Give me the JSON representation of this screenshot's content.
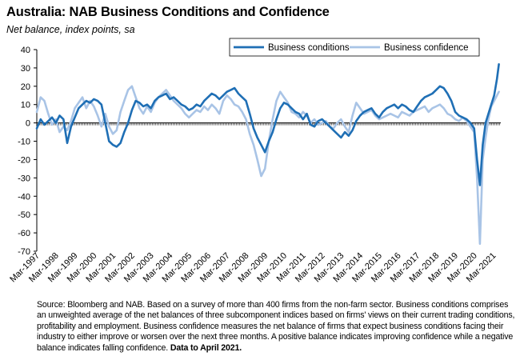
{
  "title": "Australia: NAB Business Conditions and Confidence",
  "subtitle": "Net balance, index points, sa",
  "footnote": {
    "text": "Source: Bloomberg and NAB. Based on a survey of more than 400 firms from the non-farm sector.  Business conditions comprises an unweighted average of the net balances of three subcomponent indices based on firms' views on their current trading conditions, profitability and employment.  Business confidence measures the net balance of firms that expect business conditions facing their industry to either improve or worsen over the next three months.  A positive balance indicates improving confidence while a negative balance indicates falling confidence.",
    "bold": "Data to April 2021."
  },
  "chart_data": {
    "type": "line",
    "xlabel": "",
    "ylabel": "",
    "ylim": [
      -70,
      40
    ],
    "yticks": [
      -70,
      -60,
      -50,
      -40,
      -30,
      -20,
      -10,
      0,
      10,
      20,
      30,
      40
    ],
    "x_tick_labels": [
      "Mar-1997",
      "Mar-1998",
      "Mar-1999",
      "Mar-2000",
      "Mar-2001",
      "Mar-2002",
      "Mar-2003",
      "Mar-2004",
      "Mar-2005",
      "Mar-2006",
      "Mar-2007",
      "Mar-2008",
      "Mar-2009",
      "Mar-2010",
      "Mar-2011",
      "Mar-2012",
      "Mar-2013",
      "Mar-2014",
      "Mar-2015",
      "Mar-2016",
      "Mar-2017",
      "Mar-2018",
      "Mar-2019",
      "Mar-2020",
      "Mar-2021"
    ],
    "x_range": [
      1997.0,
      2021.4
    ],
    "grid": false,
    "legend": "top-right",
    "series": [
      {
        "name": "Business conditions",
        "color": "#1f6fb5",
        "points": [
          [
            1997.0,
            -3
          ],
          [
            1997.2,
            2
          ],
          [
            1997.4,
            -1
          ],
          [
            1997.6,
            1
          ],
          [
            1997.8,
            3
          ],
          [
            1998.0,
            0
          ],
          [
            1998.2,
            4
          ],
          [
            1998.4,
            2
          ],
          [
            1998.6,
            -11
          ],
          [
            1998.8,
            -2
          ],
          [
            1999.0,
            3
          ],
          [
            1999.2,
            8
          ],
          [
            1999.4,
            10
          ],
          [
            1999.6,
            12
          ],
          [
            1999.8,
            11
          ],
          [
            2000.0,
            13
          ],
          [
            2000.2,
            12
          ],
          [
            2000.4,
            10
          ],
          [
            2000.6,
            0
          ],
          [
            2000.8,
            -10
          ],
          [
            2001.0,
            -12
          ],
          [
            2001.2,
            -13
          ],
          [
            2001.4,
            -11
          ],
          [
            2001.6,
            -5
          ],
          [
            2001.8,
            0
          ],
          [
            2002.0,
            7
          ],
          [
            2002.2,
            12
          ],
          [
            2002.4,
            11
          ],
          [
            2002.6,
            9
          ],
          [
            2002.8,
            10
          ],
          [
            2003.0,
            8
          ],
          [
            2003.2,
            12
          ],
          [
            2003.4,
            14
          ],
          [
            2003.6,
            15
          ],
          [
            2003.8,
            16
          ],
          [
            2004.0,
            13
          ],
          [
            2004.2,
            14
          ],
          [
            2004.4,
            12
          ],
          [
            2004.6,
            10
          ],
          [
            2004.8,
            9
          ],
          [
            2005.0,
            7
          ],
          [
            2005.2,
            8
          ],
          [
            2005.4,
            10
          ],
          [
            2005.6,
            9
          ],
          [
            2005.8,
            12
          ],
          [
            2006.0,
            14
          ],
          [
            2006.2,
            16
          ],
          [
            2006.4,
            15
          ],
          [
            2006.6,
            13
          ],
          [
            2006.8,
            15
          ],
          [
            2007.0,
            17
          ],
          [
            2007.2,
            18
          ],
          [
            2007.4,
            19
          ],
          [
            2007.6,
            16
          ],
          [
            2007.8,
            14
          ],
          [
            2008.0,
            12
          ],
          [
            2008.2,
            5
          ],
          [
            2008.4,
            -3
          ],
          [
            2008.6,
            -8
          ],
          [
            2008.8,
            -12
          ],
          [
            2009.0,
            -16
          ],
          [
            2009.2,
            -10
          ],
          [
            2009.4,
            -5
          ],
          [
            2009.6,
            2
          ],
          [
            2009.8,
            8
          ],
          [
            2010.0,
            11
          ],
          [
            2010.2,
            10
          ],
          [
            2010.4,
            8
          ],
          [
            2010.6,
            6
          ],
          [
            2010.8,
            5
          ],
          [
            2011.0,
            2
          ],
          [
            2011.2,
            5
          ],
          [
            2011.4,
            -1
          ],
          [
            2011.6,
            -2
          ],
          [
            2011.8,
            1
          ],
          [
            2012.0,
            2
          ],
          [
            2012.2,
            0
          ],
          [
            2012.4,
            -2
          ],
          [
            2012.6,
            -4
          ],
          [
            2012.8,
            -6
          ],
          [
            2013.0,
            -8
          ],
          [
            2013.2,
            -5
          ],
          [
            2013.4,
            -7
          ],
          [
            2013.6,
            -4
          ],
          [
            2013.8,
            1
          ],
          [
            2014.0,
            4
          ],
          [
            2014.2,
            6
          ],
          [
            2014.4,
            7
          ],
          [
            2014.6,
            8
          ],
          [
            2014.8,
            5
          ],
          [
            2015.0,
            3
          ],
          [
            2015.2,
            6
          ],
          [
            2015.4,
            8
          ],
          [
            2015.6,
            9
          ],
          [
            2015.8,
            10
          ],
          [
            2016.0,
            8
          ],
          [
            2016.2,
            10
          ],
          [
            2016.4,
            9
          ],
          [
            2016.6,
            7
          ],
          [
            2016.8,
            6
          ],
          [
            2017.0,
            9
          ],
          [
            2017.2,
            12
          ],
          [
            2017.4,
            14
          ],
          [
            2017.6,
            15
          ],
          [
            2017.8,
            16
          ],
          [
            2018.0,
            18
          ],
          [
            2018.2,
            20
          ],
          [
            2018.4,
            19
          ],
          [
            2018.6,
            16
          ],
          [
            2018.8,
            12
          ],
          [
            2019.0,
            6
          ],
          [
            2019.2,
            4
          ],
          [
            2019.4,
            3
          ],
          [
            2019.6,
            2
          ],
          [
            2019.8,
            0
          ],
          [
            2020.0,
            -3
          ],
          [
            2020.15,
            -20
          ],
          [
            2020.3,
            -34
          ],
          [
            2020.45,
            -12
          ],
          [
            2020.6,
            0
          ],
          [
            2020.75,
            5
          ],
          [
            2020.9,
            10
          ],
          [
            2021.05,
            15
          ],
          [
            2021.2,
            24
          ],
          [
            2021.3,
            32
          ]
        ]
      },
      {
        "name": "Business confidence",
        "color": "#a9c4e6",
        "points": [
          [
            1997.0,
            6
          ],
          [
            1997.2,
            14
          ],
          [
            1997.4,
            12
          ],
          [
            1997.6,
            5
          ],
          [
            1997.8,
            -1
          ],
          [
            1998.0,
            2
          ],
          [
            1998.2,
            -5
          ],
          [
            1998.4,
            -2
          ],
          [
            1998.6,
            -4
          ],
          [
            1998.8,
            1
          ],
          [
            1999.0,
            8
          ],
          [
            1999.2,
            11
          ],
          [
            1999.4,
            14
          ],
          [
            1999.6,
            8
          ],
          [
            1999.8,
            12
          ],
          [
            2000.0,
            9
          ],
          [
            2000.2,
            4
          ],
          [
            2000.4,
            -2
          ],
          [
            2000.6,
            5
          ],
          [
            2000.8,
            -2
          ],
          [
            2001.0,
            -6
          ],
          [
            2001.2,
            -4
          ],
          [
            2001.4,
            6
          ],
          [
            2001.6,
            12
          ],
          [
            2001.8,
            18
          ],
          [
            2002.0,
            20
          ],
          [
            2002.2,
            14
          ],
          [
            2002.4,
            8
          ],
          [
            2002.6,
            5
          ],
          [
            2002.8,
            9
          ],
          [
            2003.0,
            6
          ],
          [
            2003.2,
            11
          ],
          [
            2003.4,
            14
          ],
          [
            2003.6,
            16
          ],
          [
            2003.8,
            18
          ],
          [
            2004.0,
            15
          ],
          [
            2004.2,
            12
          ],
          [
            2004.4,
            10
          ],
          [
            2004.6,
            8
          ],
          [
            2004.8,
            5
          ],
          [
            2005.0,
            3
          ],
          [
            2005.2,
            5
          ],
          [
            2005.4,
            7
          ],
          [
            2005.6,
            6
          ],
          [
            2005.8,
            9
          ],
          [
            2006.0,
            7
          ],
          [
            2006.2,
            10
          ],
          [
            2006.4,
            8
          ],
          [
            2006.6,
            5
          ],
          [
            2006.8,
            12
          ],
          [
            2007.0,
            15
          ],
          [
            2007.2,
            13
          ],
          [
            2007.4,
            10
          ],
          [
            2007.6,
            9
          ],
          [
            2007.8,
            6
          ],
          [
            2008.0,
            2
          ],
          [
            2008.2,
            -6
          ],
          [
            2008.4,
            -12
          ],
          [
            2008.6,
            -20
          ],
          [
            2008.8,
            -29
          ],
          [
            2009.0,
            -25
          ],
          [
            2009.2,
            -10
          ],
          [
            2009.4,
            2
          ],
          [
            2009.6,
            12
          ],
          [
            2009.8,
            17
          ],
          [
            2010.0,
            14
          ],
          [
            2010.2,
            11
          ],
          [
            2010.4,
            6
          ],
          [
            2010.6,
            5
          ],
          [
            2010.8,
            3
          ],
          [
            2011.0,
            6
          ],
          [
            2011.2,
            4
          ],
          [
            2011.4,
            0
          ],
          [
            2011.6,
            2
          ],
          [
            2011.8,
            -1
          ],
          [
            2012.0,
            0
          ],
          [
            2012.2,
            1
          ],
          [
            2012.4,
            -2
          ],
          [
            2012.6,
            -3
          ],
          [
            2012.8,
            0
          ],
          [
            2013.0,
            2
          ],
          [
            2013.2,
            -2
          ],
          [
            2013.4,
            -5
          ],
          [
            2013.6,
            4
          ],
          [
            2013.8,
            11
          ],
          [
            2014.0,
            8
          ],
          [
            2014.2,
            5
          ],
          [
            2014.4,
            6
          ],
          [
            2014.6,
            7
          ],
          [
            2014.8,
            4
          ],
          [
            2015.0,
            2
          ],
          [
            2015.2,
            3
          ],
          [
            2015.4,
            4
          ],
          [
            2015.6,
            5
          ],
          [
            2015.8,
            4
          ],
          [
            2016.0,
            3
          ],
          [
            2016.2,
            6
          ],
          [
            2016.4,
            5
          ],
          [
            2016.6,
            4
          ],
          [
            2016.8,
            6
          ],
          [
            2017.0,
            7
          ],
          [
            2017.2,
            8
          ],
          [
            2017.4,
            9
          ],
          [
            2017.6,
            6
          ],
          [
            2017.8,
            8
          ],
          [
            2018.0,
            9
          ],
          [
            2018.2,
            10
          ],
          [
            2018.4,
            8
          ],
          [
            2018.6,
            5
          ],
          [
            2018.8,
            4
          ],
          [
            2019.0,
            2
          ],
          [
            2019.2,
            1
          ],
          [
            2019.4,
            3
          ],
          [
            2019.6,
            1
          ],
          [
            2019.8,
            -2
          ],
          [
            2020.0,
            -5
          ],
          [
            2020.15,
            -30
          ],
          [
            2020.3,
            -66
          ],
          [
            2020.45,
            -20
          ],
          [
            2020.6,
            -8
          ],
          [
            2020.75,
            2
          ],
          [
            2020.9,
            9
          ],
          [
            2021.05,
            12
          ],
          [
            2021.2,
            15
          ],
          [
            2021.3,
            17
          ]
        ]
      }
    ]
  }
}
